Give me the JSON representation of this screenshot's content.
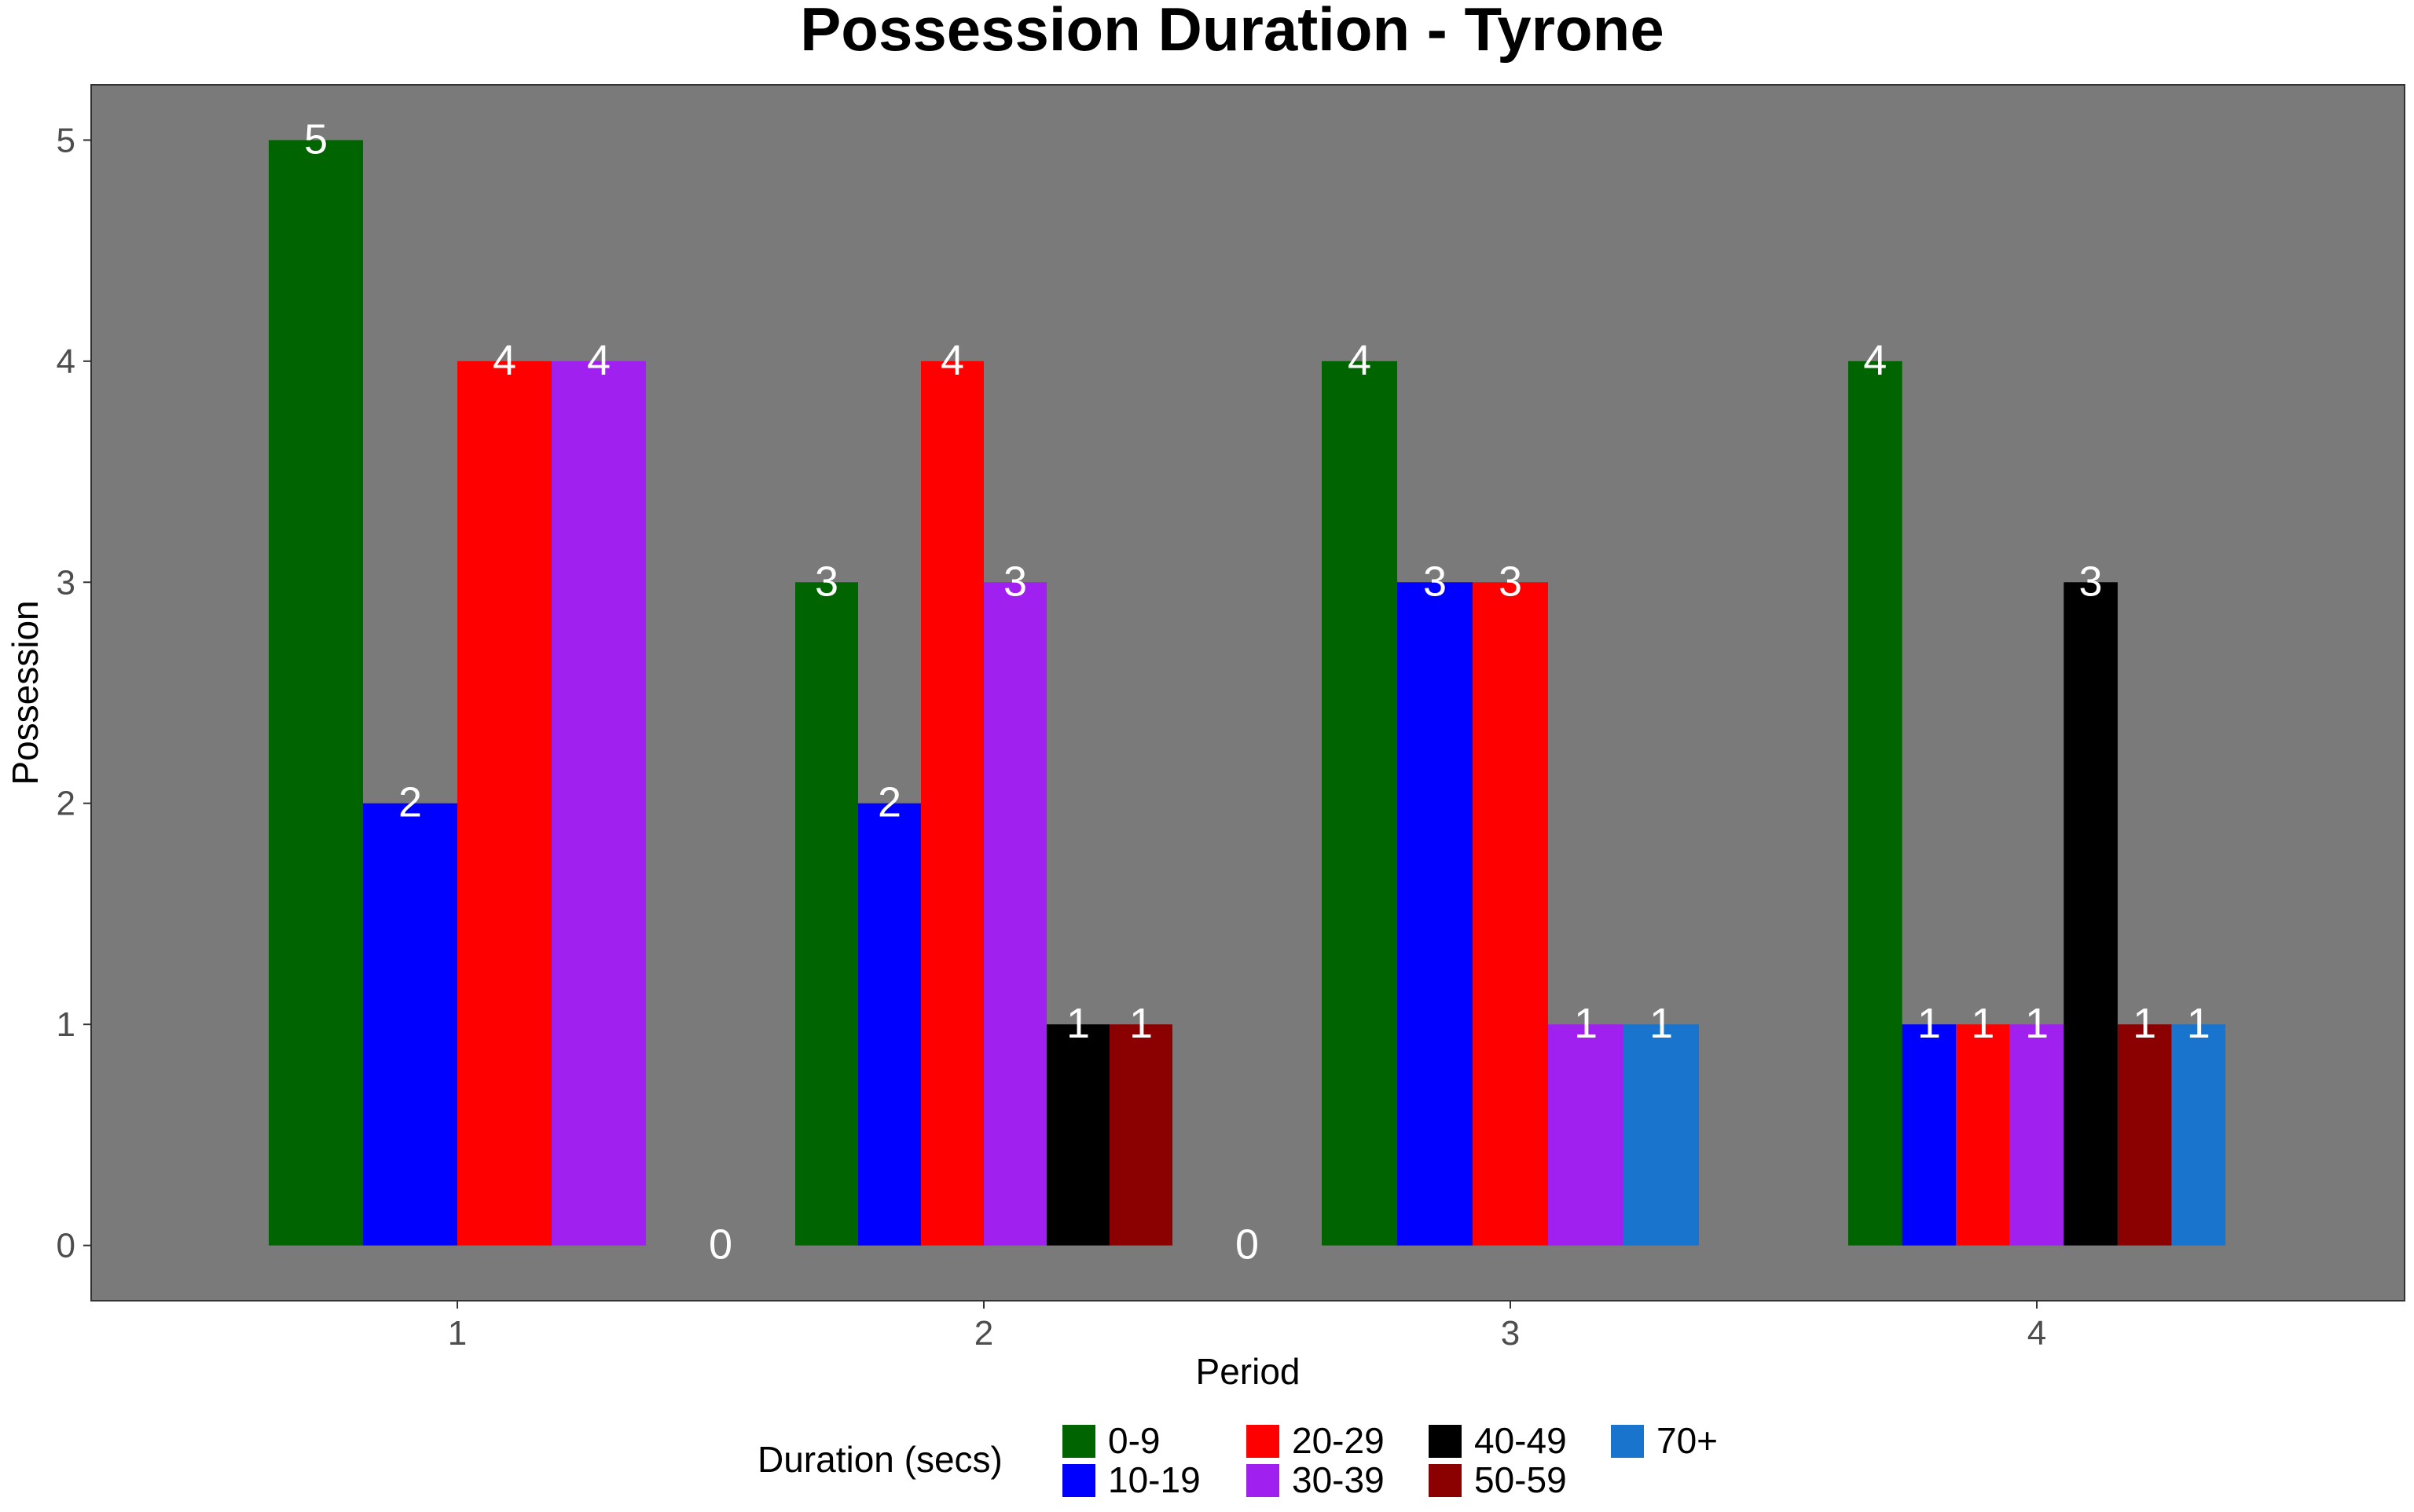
{
  "chart_data": {
    "type": "bar",
    "title": "Possession Duration - Tyrone",
    "xlabel": "Period",
    "ylabel": "Possession",
    "categories": [
      "1",
      "2",
      "3",
      "4"
    ],
    "ylim": [
      -0.25,
      5.25
    ],
    "yticks": [
      0,
      1,
      2,
      3,
      4,
      5
    ],
    "grid": false,
    "panel_background": "#7a7a7a",
    "legend": {
      "title": "Duration (secs)",
      "position": "bottom",
      "items": [
        {
          "label": "0-9",
          "color": "#006400"
        },
        {
          "label": "10-19",
          "color": "#0000ff"
        },
        {
          "label": "20-29",
          "color": "#ff0000"
        },
        {
          "label": "30-39",
          "color": "#a020f0"
        },
        {
          "label": "40-49",
          "color": "#000000"
        },
        {
          "label": "50-59",
          "color": "#8b0000"
        },
        {
          "label": "70+",
          "color": "#1874cd"
        }
      ]
    },
    "groups": [
      {
        "period": "1",
        "bars": [
          {
            "duration": "0-9",
            "value": 5
          },
          {
            "duration": "10-19",
            "value": 2
          },
          {
            "duration": "20-29",
            "value": 4
          },
          {
            "duration": "30-39",
            "value": 4
          }
        ]
      },
      {
        "period": "1.5",
        "bars": [
          {
            "duration": "",
            "value": 0
          }
        ]
      },
      {
        "period": "2",
        "bars": [
          {
            "duration": "0-9",
            "value": 3
          },
          {
            "duration": "10-19",
            "value": 2
          },
          {
            "duration": "20-29",
            "value": 4
          },
          {
            "duration": "30-39",
            "value": 3
          },
          {
            "duration": "40-49",
            "value": 1
          },
          {
            "duration": "50-59",
            "value": 1
          }
        ]
      },
      {
        "period": "2.5",
        "bars": [
          {
            "duration": "",
            "value": 0
          }
        ]
      },
      {
        "period": "3",
        "bars": [
          {
            "duration": "0-9",
            "value": 4
          },
          {
            "duration": "10-19",
            "value": 3
          },
          {
            "duration": "20-29",
            "value": 3
          },
          {
            "duration": "30-39",
            "value": 1
          },
          {
            "duration": "70+",
            "value": 1
          }
        ]
      },
      {
        "period": "4",
        "bars": [
          {
            "duration": "0-9",
            "value": 4
          },
          {
            "duration": "10-19",
            "value": 1
          },
          {
            "duration": "20-29",
            "value": 1
          },
          {
            "duration": "30-39",
            "value": 1
          },
          {
            "duration": "40-49",
            "value": 3
          },
          {
            "duration": "50-59",
            "value": 1
          },
          {
            "duration": "70+",
            "value": 1
          }
        ]
      }
    ]
  }
}
